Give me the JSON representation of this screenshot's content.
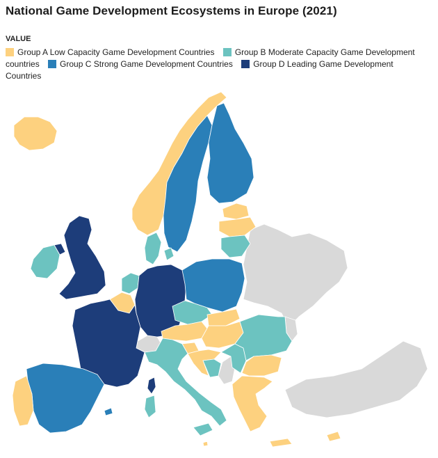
{
  "title": "National Game Development Ecosystems in Europe (2021)",
  "legend": {
    "heading": "VALUE",
    "items": [
      {
        "key": "A",
        "label": "Group A Low Capacity Game Development Countries",
        "color": "#fdd17f"
      },
      {
        "key": "B",
        "label": "Group B Moderate Capacity Game Development countries",
        "color": "#6cc3c0"
      },
      {
        "key": "C",
        "label": "Group C Strong Game Development Countries",
        "color": "#2a7fb8"
      },
      {
        "key": "D",
        "label": "Group D Leading Game Development Countries",
        "color": "#1d3d7a"
      }
    ]
  },
  "no_data_color": "#d9d9d9",
  "map_data": {
    "Iceland": "A",
    "Norway": "A",
    "Sweden": "C",
    "Finland": "C",
    "Estonia": "A",
    "Latvia": "A",
    "Lithuania": "B",
    "Ireland": "B",
    "United Kingdom": "D",
    "Denmark": "B",
    "Netherlands": "B",
    "Belgium": "A",
    "Luxembourg": "A",
    "France": "D",
    "Germany": "D",
    "Poland": "C",
    "Czechia": "B",
    "Slovakia": "A",
    "Austria": "A",
    "Hungary": "A",
    "Slovenia": "A",
    "Croatia": "A",
    "Romania": "B",
    "Serbia": "B",
    "Bosnia and Herzegovina": "B",
    "Bulgaria": "A",
    "Greece": "A",
    "Italy": "B",
    "Spain": "C",
    "Portugal": "A",
    "Switzerland": "none",
    "Malta": "A",
    "Cyprus": "A"
  }
}
